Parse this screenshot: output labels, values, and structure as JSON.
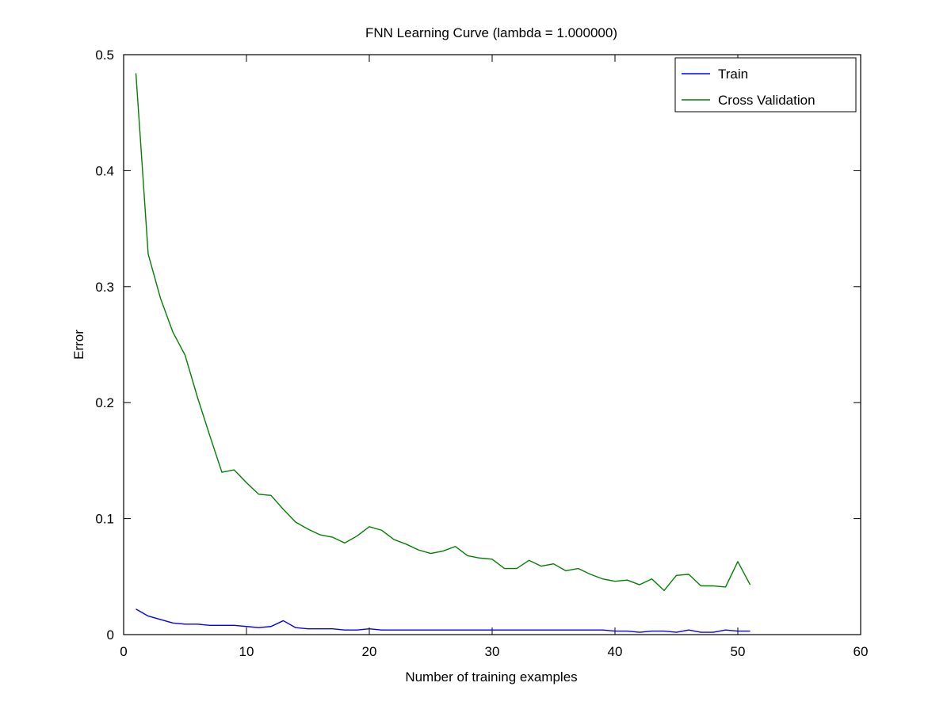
{
  "chart_data": {
    "type": "line",
    "title": "FNN Learning Curve (lambda = 1.000000)",
    "xlabel": "Number of training examples",
    "ylabel": "Error",
    "xlim": [
      0,
      60
    ],
    "ylim": [
      0,
      0.5
    ],
    "xticks": [
      0,
      10,
      20,
      30,
      40,
      50,
      60
    ],
    "yticks": [
      0,
      0.1,
      0.2,
      0.3,
      0.4,
      0.5
    ],
    "xtick_labels": [
      "0",
      "10",
      "20",
      "30",
      "40",
      "50",
      "60"
    ],
    "ytick_labels": [
      "0",
      "0.1",
      "0.2",
      "0.3",
      "0.4",
      "0.5"
    ],
    "grid": false,
    "legend_position": "top-right",
    "x": [
      1,
      2,
      3,
      4,
      5,
      6,
      7,
      8,
      9,
      10,
      11,
      12,
      13,
      14,
      15,
      16,
      17,
      18,
      19,
      20,
      21,
      22,
      23,
      24,
      25,
      26,
      27,
      28,
      29,
      30,
      31,
      32,
      33,
      34,
      35,
      36,
      37,
      38,
      39,
      40,
      41,
      42,
      43,
      44,
      45,
      46,
      47,
      48,
      49,
      50,
      51
    ],
    "series": [
      {
        "name": "Train",
        "color": "#0000ff",
        "values": [
          0.022,
          0.016,
          0.013,
          0.01,
          0.009,
          0.009,
          0.008,
          0.008,
          0.008,
          0.007,
          0.006,
          0.007,
          0.012,
          0.006,
          0.005,
          0.005,
          0.005,
          0.004,
          0.004,
          0.005,
          0.004,
          0.004,
          0.004,
          0.004,
          0.004,
          0.004,
          0.004,
          0.004,
          0.004,
          0.004,
          0.004,
          0.004,
          0.004,
          0.004,
          0.004,
          0.004,
          0.004,
          0.004,
          0.004,
          0.003,
          0.003,
          0.002,
          0.003,
          0.003,
          0.002,
          0.004,
          0.002,
          0.002,
          0.004,
          0.003,
          0.003
        ]
      },
      {
        "name": "Cross Validation",
        "color": "#008000",
        "values": [
          0.484,
          0.328,
          0.29,
          0.261,
          0.241,
          0.205,
          0.172,
          0.14,
          0.142,
          0.131,
          0.121,
          0.12,
          0.108,
          0.097,
          0.091,
          0.086,
          0.084,
          0.079,
          0.085,
          0.093,
          0.09,
          0.082,
          0.078,
          0.073,
          0.07,
          0.072,
          0.076,
          0.068,
          0.066,
          0.065,
          0.057,
          0.057,
          0.064,
          0.059,
          0.061,
          0.055,
          0.057,
          0.052,
          0.048,
          0.046,
          0.047,
          0.043,
          0.048,
          0.038,
          0.051,
          0.052,
          0.042,
          0.042,
          0.041,
          0.063,
          0.043
        ]
      }
    ]
  }
}
